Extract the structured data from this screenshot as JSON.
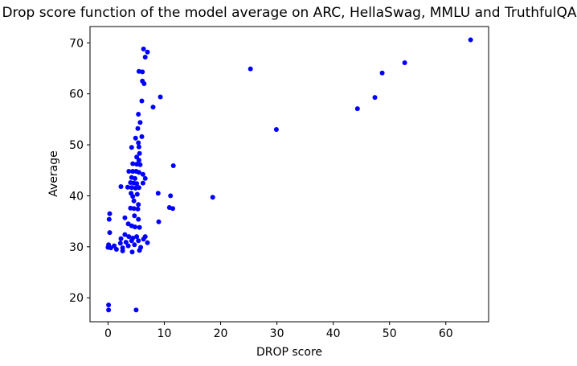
{
  "figure": {
    "background": "#ffffff",
    "spine_color": "#000000",
    "text_color": "#000000"
  },
  "chart_data": {
    "type": "scatter",
    "title": "Drop score function of the model average on ARC, HellaSwag, MMLU and TruthfulQA",
    "xlabel": "DROP score",
    "ylabel": "Average",
    "xlim": [
      -3.2,
      67.6
    ],
    "ylim": [
      15.3,
      73.2
    ],
    "xticks": [
      0,
      10,
      20,
      30,
      40,
      50,
      60
    ],
    "yticks": [
      20,
      30,
      40,
      50,
      60,
      70
    ],
    "grid": false,
    "legend_position": "none",
    "marker_color": "#0000ff",
    "marker_radius": 3,
    "series": [
      {
        "name": "models",
        "points": [
          [
            64.4,
            70.6
          ],
          [
            52.7,
            66.1
          ],
          [
            48.7,
            64.1
          ],
          [
            47.4,
            59.3
          ],
          [
            44.3,
            57.1
          ],
          [
            29.9,
            53.0
          ],
          [
            25.3,
            64.9
          ],
          [
            18.6,
            39.7
          ],
          [
            6.3,
            68.8
          ],
          [
            7.0,
            68.2
          ],
          [
            6.6,
            67.2
          ],
          [
            5.5,
            64.4
          ],
          [
            6.1,
            64.3
          ],
          [
            6.1,
            62.5
          ],
          [
            6.4,
            62.0
          ],
          [
            9.3,
            59.4
          ],
          [
            6.0,
            58.6
          ],
          [
            8.0,
            57.4
          ],
          [
            5.4,
            56.0
          ],
          [
            5.7,
            54.4
          ],
          [
            5.3,
            53.2
          ],
          [
            6.0,
            51.6
          ],
          [
            4.9,
            51.3
          ],
          [
            5.4,
            50.4
          ],
          [
            4.2,
            49.5
          ],
          [
            5.5,
            49.6
          ],
          [
            5.6,
            48.3
          ],
          [
            5.1,
            47.6
          ],
          [
            5.5,
            47.0
          ],
          [
            4.4,
            46.3
          ],
          [
            5.1,
            46.2
          ],
          [
            5.7,
            46.1
          ],
          [
            11.6,
            45.9
          ],
          [
            3.7,
            44.8
          ],
          [
            4.4,
            44.8
          ],
          [
            5.0,
            44.8
          ],
          [
            5.5,
            44.6
          ],
          [
            6.2,
            44.2
          ],
          [
            4.2,
            43.6
          ],
          [
            4.8,
            43.4
          ],
          [
            6.6,
            43.4
          ],
          [
            4.0,
            42.6
          ],
          [
            4.6,
            42.5
          ],
          [
            5.1,
            42.4
          ],
          [
            6.2,
            42.5
          ],
          [
            2.3,
            41.8
          ],
          [
            3.5,
            41.7
          ],
          [
            4.2,
            41.6
          ],
          [
            4.9,
            41.5
          ],
          [
            5.5,
            41.6
          ],
          [
            4.1,
            40.5
          ],
          [
            5.2,
            40.3
          ],
          [
            8.9,
            40.5
          ],
          [
            11.1,
            40.0
          ],
          [
            4.4,
            39.9
          ],
          [
            4.6,
            39.0
          ],
          [
            5.4,
            38.3
          ],
          [
            4.0,
            37.6
          ],
          [
            4.6,
            37.5
          ],
          [
            5.3,
            37.4
          ],
          [
            10.9,
            37.7
          ],
          [
            11.5,
            37.5
          ],
          [
            0.3,
            36.5
          ],
          [
            0.2,
            35.4
          ],
          [
            3.0,
            35.7
          ],
          [
            4.7,
            36.1
          ],
          [
            5.4,
            35.4
          ],
          [
            9.0,
            34.9
          ],
          [
            3.6,
            34.5
          ],
          [
            4.2,
            34.1
          ],
          [
            4.8,
            33.9
          ],
          [
            5.6,
            33.8
          ],
          [
            0.3,
            32.8
          ],
          [
            3.0,
            32.4
          ],
          [
            3.7,
            32.0
          ],
          [
            2.3,
            31.6
          ],
          [
            4.4,
            31.7
          ],
          [
            6.6,
            32.0
          ],
          [
            5.1,
            32.0
          ],
          [
            0.0,
            29.9
          ],
          [
            0.1,
            30.4
          ],
          [
            0.5,
            29.8
          ],
          [
            1.1,
            30.2
          ],
          [
            1.5,
            29.5
          ],
          [
            2.2,
            30.7
          ],
          [
            2.6,
            29.8
          ],
          [
            3.2,
            30.9
          ],
          [
            3.6,
            30.2
          ],
          [
            4.2,
            31.2
          ],
          [
            4.7,
            30.4
          ],
          [
            5.4,
            31.2
          ],
          [
            5.8,
            29.9
          ],
          [
            6.3,
            31.5
          ],
          [
            7.0,
            30.8
          ],
          [
            2.6,
            29.2
          ],
          [
            4.3,
            29.0
          ],
          [
            5.6,
            29.3
          ],
          [
            0.1,
            18.6
          ],
          [
            0.1,
            17.6
          ],
          [
            5.0,
            17.6
          ]
        ]
      }
    ]
  }
}
